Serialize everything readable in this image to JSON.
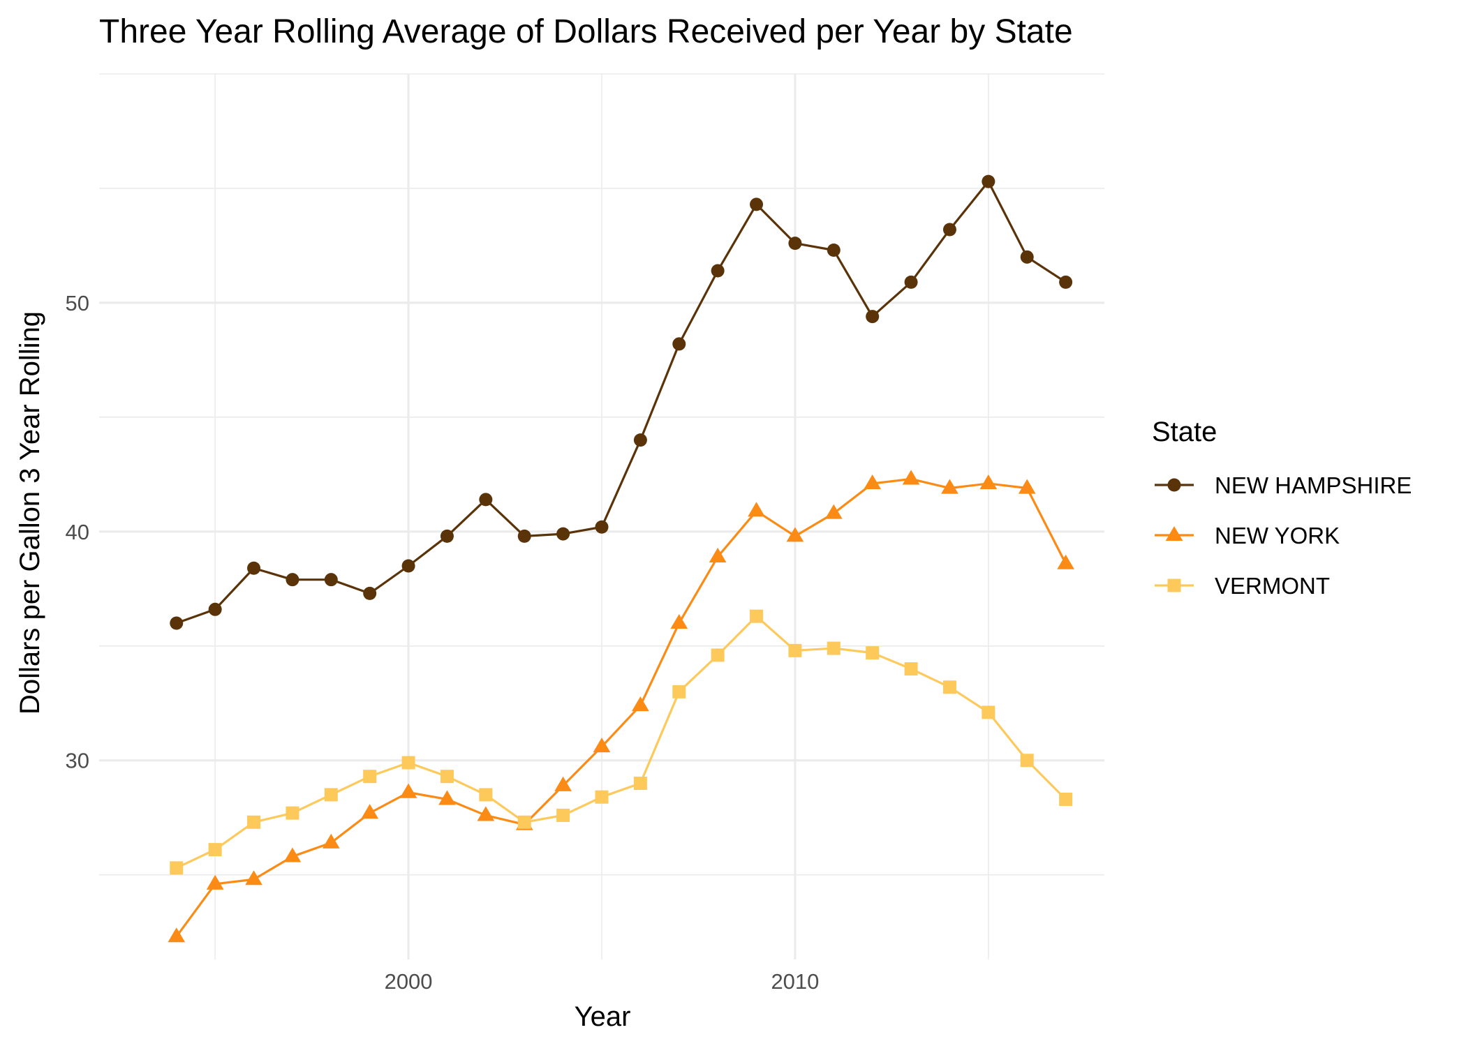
{
  "chart_data": {
    "type": "line",
    "title": "Three Year Rolling Average of Dollars Received per Year by State",
    "xlabel": "Year",
    "ylabel": "Dollars per Gallon 3 Year Rolling",
    "x": [
      1994,
      1995,
      1996,
      1997,
      1998,
      1999,
      2000,
      2001,
      2002,
      2003,
      2004,
      2005,
      2006,
      2007,
      2008,
      2009,
      2010,
      2011,
      2012,
      2013,
      2014,
      2015,
      2016,
      2017
    ],
    "x_ticks": [
      2000,
      2010
    ],
    "x_tick_labels": [
      "2000",
      "2010"
    ],
    "y_ticks": [
      30,
      40,
      50
    ],
    "y_tick_labels": [
      "30",
      "40",
      "50"
    ],
    "xlim": [
      1992,
      2018
    ],
    "ylim": [
      21.3,
      60
    ],
    "grid": true,
    "legend": {
      "title": "State",
      "position": "right"
    },
    "series": [
      {
        "name": "NEW HAMPSHIRE",
        "color": "#5a3309",
        "marker": "circle",
        "values": [
          36.0,
          36.6,
          38.4,
          37.9,
          37.9,
          37.3,
          38.5,
          39.8,
          41.4,
          39.8,
          39.9,
          40.2,
          44.0,
          48.2,
          51.4,
          54.3,
          52.6,
          52.3,
          49.4,
          50.9,
          53.2,
          55.3,
          52.0,
          50.9
        ]
      },
      {
        "name": "NEW YORK",
        "color": "#fb8b15",
        "marker": "triangle",
        "values": [
          22.3,
          24.6,
          24.8,
          25.8,
          26.4,
          27.7,
          28.6,
          28.3,
          27.6,
          27.2,
          28.9,
          30.6,
          32.4,
          36.0,
          38.9,
          40.9,
          39.8,
          40.8,
          42.1,
          42.3,
          41.9,
          42.1,
          41.9,
          38.6
        ]
      },
      {
        "name": "VERMONT",
        "color": "#fdc95b",
        "marker": "square",
        "values": [
          25.3,
          26.1,
          27.3,
          27.7,
          28.5,
          29.3,
          29.9,
          29.3,
          28.5,
          27.3,
          27.6,
          28.4,
          29.0,
          33.0,
          34.6,
          36.3,
          34.8,
          34.9,
          34.7,
          34.0,
          33.2,
          32.1,
          30.0,
          28.3
        ]
      }
    ]
  }
}
